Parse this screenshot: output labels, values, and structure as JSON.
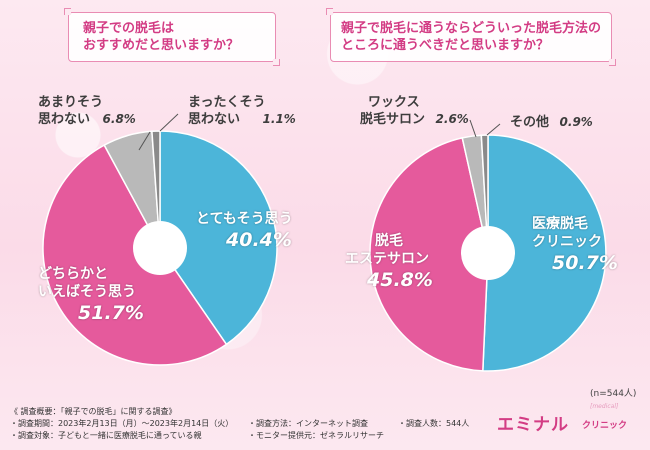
{
  "questions": {
    "q1_line1": "親子での脱毛は",
    "q1_line2": "おすすめだと思いますか？",
    "q2_line1": "親子で脱毛に通うならどういった脱毛方法の",
    "q2_line2": "ところに通うべきだと思いますか？"
  },
  "colors": {
    "blue": "#4cb5d9",
    "pink": "#e55a9c",
    "gray": "#b9b9b9",
    "darkgray": "#8a8a8a",
    "accent": "#d33c84"
  },
  "chart_data": [
    {
      "type": "pie",
      "start": "12 o'clock, clockwise",
      "slices": [
        {
          "label": "とてもそう思う",
          "value": 40.4,
          "display": "40.4%",
          "color": "#4cb5d9"
        },
        {
          "label": "どちらかといえばそう思う",
          "value": 51.7,
          "display": "51.7%",
          "color": "#e55a9c"
        },
        {
          "label": "あまりそう思わない",
          "value": 6.8,
          "display": "6.8%",
          "color": "#b9b9b9"
        },
        {
          "label": "まったくそう思わない",
          "value": 1.1,
          "display": "1.1%",
          "color": "#8a8a8a"
        }
      ]
    },
    {
      "type": "pie",
      "start": "12 o'clock, clockwise",
      "slices": [
        {
          "label": "医療脱毛クリニック",
          "value": 50.7,
          "display": "50.7%",
          "color": "#4cb5d9"
        },
        {
          "label": "脱毛エステサロン",
          "value": 45.8,
          "display": "45.8%",
          "color": "#e55a9c"
        },
        {
          "label": "ワックス脱毛サロン",
          "value": 2.6,
          "display": "2.6%",
          "color": "#b9b9b9"
        },
        {
          "label": "その他",
          "value": 0.9,
          "display": "0.9%",
          "color": "#8a8a8a"
        }
      ]
    }
  ],
  "labels": {
    "c1_s1_line1": "とてもそう思う",
    "c1_s1_pct": "40.4%",
    "c1_s2_line1": "どちらかと",
    "c1_s2_line2": "いえばそう思う",
    "c1_s2_pct": "51.7%",
    "c1_s3_line1": "あまりそう",
    "c1_s3_line2": "思わない",
    "c1_s3_pct": "6.8%",
    "c1_s4_line1": "まったくそう",
    "c1_s4_line2": "思わない",
    "c1_s4_pct": "1.1%",
    "c2_s1_line1": "医療脱毛",
    "c2_s1_line2": "クリニック",
    "c2_s1_pct": "50.7%",
    "c2_s2_line1": "脱毛",
    "c2_s2_line2": "エステサロン",
    "c2_s2_pct": "45.8%",
    "c2_s3_line1": "ワックス",
    "c2_s3_line2": "脱毛サロン",
    "c2_s3_pct": "2.6%",
    "c2_s4_line1": "その他",
    "c2_s4_pct": "0.9%"
  },
  "sample_size": "(n=544人)",
  "footer": {
    "title": "《 調査概要：「親子での脱毛」に関する調査》",
    "period": "・調査期間：2023年2月13日（月）〜2023年2月14日（火）",
    "target": "・調査対象：子どもと一緒に医療脱毛に通っている親",
    "method": "・調査方法：インターネット調査",
    "provider": "・モニター提供元：ゼネラルリサーチ",
    "count": "・調査人数：544人"
  },
  "logo": {
    "main": "エミナル",
    "sub": "クリニック",
    "small": "[medical]"
  }
}
